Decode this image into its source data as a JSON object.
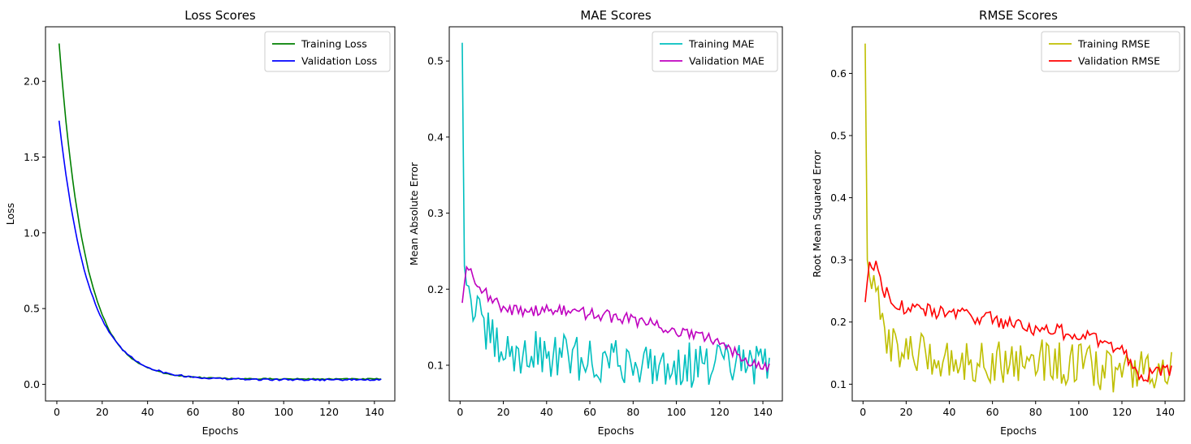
{
  "chart_data": [
    {
      "type": "line",
      "title": "Loss Scores",
      "xlabel": "Epochs",
      "ylabel": "Loss",
      "xlim": [
        -5,
        149
      ],
      "ylim": [
        -0.11,
        2.36
      ],
      "xticks": [
        0,
        20,
        40,
        60,
        80,
        100,
        120,
        140
      ],
      "yticks": [
        0.0,
        0.5,
        1.0,
        1.5,
        2.0
      ],
      "ytick_labels": [
        "0.0",
        "0.5",
        "1.0",
        "1.5",
        "2.0"
      ],
      "legend": "top-right",
      "grid": false,
      "series": [
        {
          "name": "Training Loss",
          "color": "#008000",
          "kind": "decay",
          "start": 2.25,
          "end": 0.035,
          "tau": 11.5,
          "noise": 0.004
        },
        {
          "name": "Validation Loss",
          "color": "#0000ff",
          "kind": "decay",
          "start": 1.74,
          "end": 0.03,
          "tau": 13,
          "noise": 0.006
        }
      ]
    },
    {
      "type": "line",
      "title": "MAE Scores",
      "xlabel": "Epochs",
      "ylabel": "Mean Absolute Error",
      "xlim": [
        -5,
        149
      ],
      "ylim": [
        0.053,
        0.545
      ],
      "xticks": [
        0,
        20,
        40,
        60,
        80,
        100,
        120,
        140
      ],
      "yticks": [
        0.1,
        0.2,
        0.3,
        0.4,
        0.5
      ],
      "ytick_labels": [
        "0.1",
        "0.2",
        "0.3",
        "0.4",
        "0.5"
      ],
      "legend": "top-right",
      "grid": false,
      "series": [
        {
          "name": "Training MAE",
          "color": "#00bfbf",
          "kind": "noisy",
          "anchors": [
            [
              1,
              0.524
            ],
            [
              2,
              0.23
            ],
            [
              5,
              0.19
            ],
            [
              10,
              0.15
            ],
            [
              20,
              0.115
            ],
            [
              40,
              0.115
            ],
            [
              60,
              0.105
            ],
            [
              80,
              0.105
            ],
            [
              100,
              0.1
            ],
            [
              120,
              0.1
            ],
            [
              143,
              0.1
            ]
          ],
          "noise": 0.03
        },
        {
          "name": "Validation MAE",
          "color": "#bf00bf",
          "kind": "noisy",
          "anchors": [
            [
              1,
              0.182
            ],
            [
              3,
              0.232
            ],
            [
              6,
              0.22
            ],
            [
              10,
              0.2
            ],
            [
              20,
              0.172
            ],
            [
              40,
              0.173
            ],
            [
              60,
              0.168
            ],
            [
              80,
              0.16
            ],
            [
              100,
              0.145
            ],
            [
              120,
              0.13
            ],
            [
              135,
              0.105
            ],
            [
              143,
              0.1
            ]
          ],
          "noise": 0.008
        }
      ]
    },
    {
      "type": "line",
      "title": "RMSE Scores",
      "xlabel": "Epochs",
      "ylabel": "Root Mean Squared Error",
      "xlim": [
        -5,
        149
      ],
      "ylim": [
        0.073,
        0.675
      ],
      "xticks": [
        0,
        20,
        40,
        60,
        80,
        100,
        120,
        140
      ],
      "yticks": [
        0.1,
        0.2,
        0.3,
        0.4,
        0.5,
        0.6
      ],
      "ytick_labels": [
        "0.1",
        "0.2",
        "0.3",
        "0.4",
        "0.5",
        "0.6"
      ],
      "legend": "top-right",
      "grid": false,
      "series": [
        {
          "name": "Training RMSE",
          "color": "#bfbf00",
          "kind": "noisy",
          "anchors": [
            [
              1,
              0.648
            ],
            [
              2,
              0.3
            ],
            [
              5,
              0.25
            ],
            [
              10,
              0.18
            ],
            [
              20,
              0.15
            ],
            [
              40,
              0.14
            ],
            [
              60,
              0.135
            ],
            [
              80,
              0.14
            ],
            [
              100,
              0.13
            ],
            [
              120,
              0.12
            ],
            [
              143,
              0.12
            ]
          ],
          "noise": 0.035
        },
        {
          "name": "Validation RMSE",
          "color": "#ff0000",
          "kind": "noisy",
          "anchors": [
            [
              1,
              0.232
            ],
            [
              3,
              0.3
            ],
            [
              6,
              0.29
            ],
            [
              10,
              0.25
            ],
            [
              20,
              0.22
            ],
            [
              40,
              0.215
            ],
            [
              60,
              0.205
            ],
            [
              80,
              0.19
            ],
            [
              100,
              0.18
            ],
            [
              120,
              0.155
            ],
            [
              128,
              0.115
            ],
            [
              143,
              0.12
            ]
          ],
          "noise": 0.012
        }
      ]
    }
  ]
}
